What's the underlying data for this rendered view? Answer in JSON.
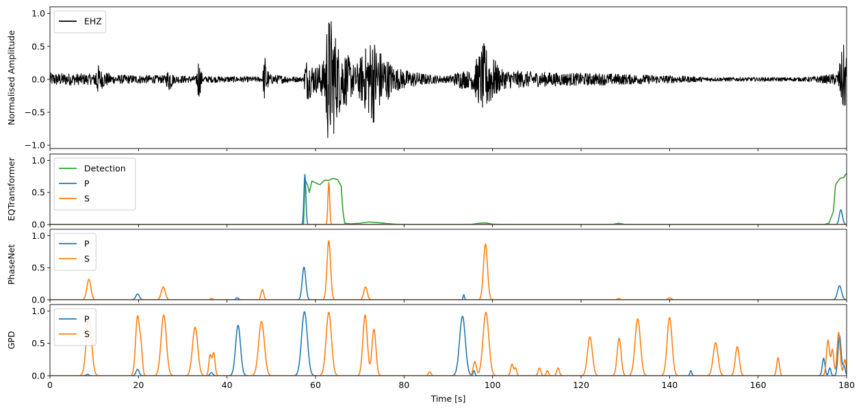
{
  "chart_data": [
    {
      "type": "line",
      "xlim": [
        0,
        180
      ],
      "ylim": [
        -1.05,
        1.1
      ],
      "yticks": [
        -1.0,
        -0.5,
        0.0,
        0.5,
        1.0
      ],
      "ytick_labels": [
        "−1.0",
        "−0.5",
        "0.0",
        "0.5",
        "1.0"
      ],
      "ylabel": "Normalised Amplitude",
      "legend_position": "top-left",
      "series": [
        {
          "name": "EHZ",
          "color": "#000000",
          "envelope": [
            [
              0,
              0.1
            ],
            [
              10,
              0.08
            ],
            [
              10.5,
              0.28
            ],
            [
              11.5,
              0.15
            ],
            [
              14,
              0.07
            ],
            [
              26,
              0.06
            ],
            [
              27,
              0.2
            ],
            [
              28,
              0.06
            ],
            [
              33,
              0.05
            ],
            [
              33.5,
              0.35
            ],
            [
              34.5,
              0.05
            ],
            [
              48,
              0.04
            ],
            [
              48.5,
              0.4
            ],
            [
              49.5,
              0.08
            ],
            [
              57.4,
              0.03
            ],
            [
              57.6,
              0.35
            ],
            [
              60,
              0.2
            ],
            [
              62,
              0.3
            ],
            [
              62.5,
              0.95
            ],
            [
              63.2,
              1.0
            ],
            [
              64,
              0.9
            ],
            [
              65,
              0.55
            ],
            [
              67,
              0.4
            ],
            [
              69,
              0.2
            ],
            [
              71,
              0.45
            ],
            [
              73,
              0.7
            ],
            [
              74,
              0.5
            ],
            [
              78,
              0.18
            ],
            [
              82,
              0.12
            ],
            [
              86,
              0.07
            ],
            [
              90,
              0.05
            ],
            [
              93,
              0.15
            ],
            [
              95,
              0.12
            ],
            [
              98,
              0.55
            ],
            [
              99,
              0.45
            ],
            [
              102,
              0.15
            ],
            [
              108,
              0.12
            ],
            [
              115,
              0.1
            ],
            [
              125,
              0.09
            ],
            [
              140,
              0.06
            ],
            [
              150,
              0.03
            ],
            [
              170,
              0.03
            ],
            [
              175,
              0.06
            ],
            [
              178,
              0.1
            ],
            [
              179.2,
              0.55
            ],
            [
              180,
              0.4
            ]
          ]
        }
      ]
    },
    {
      "type": "line",
      "xlim": [
        0,
        180
      ],
      "ylim": [
        0,
        1.1
      ],
      "yticks": [
        0.0,
        0.5,
        1.0
      ],
      "ytick_labels": [
        "0.0",
        "0.5",
        "1.0"
      ],
      "ylabel": "EQTransformer",
      "legend_position": "top-left",
      "series": [
        {
          "name": "Detection",
          "color": "#2ca02c",
          "points": [
            [
              0,
              0
            ],
            [
              57.3,
              0
            ],
            [
              57.6,
              0.7
            ],
            [
              58.2,
              0.62
            ],
            [
              58.6,
              0.5
            ],
            [
              59.2,
              0.68
            ],
            [
              60,
              0.65
            ],
            [
              61,
              0.62
            ],
            [
              62,
              0.69
            ],
            [
              63,
              0.69
            ],
            [
              64,
              0.72
            ],
            [
              65,
              0.7
            ],
            [
              65.8,
              0.6
            ],
            [
              66.2,
              0.2
            ],
            [
              66.6,
              0.02
            ],
            [
              68,
              0.01
            ],
            [
              70,
              0.02
            ],
            [
              72,
              0.04
            ],
            [
              74,
              0.03
            ],
            [
              76,
              0.015
            ],
            [
              78,
              0.005
            ],
            [
              80,
              0
            ],
            [
              95,
              0
            ],
            [
              97,
              0.02
            ],
            [
              98.5,
              0.025
            ],
            [
              100,
              0.005
            ],
            [
              103,
              0
            ],
            [
              127,
              0
            ],
            [
              128.5,
              0.02
            ],
            [
              130,
              0
            ],
            [
              175,
              0
            ],
            [
              176,
              0.02
            ],
            [
              177,
              0.2
            ],
            [
              177.5,
              0.62
            ],
            [
              178.5,
              0.72
            ],
            [
              179.3,
              0.73
            ],
            [
              180,
              0.8
            ]
          ]
        },
        {
          "name": "P",
          "color": "#1f77b4",
          "peaks": [
            [
              57.6,
              0.78,
              0.22
            ],
            [
              178.7,
              0.23,
              0.35
            ]
          ]
        },
        {
          "name": "S",
          "color": "#ff7f0e",
          "peaks": [
            [
              63.0,
              0.66,
              0.2
            ]
          ]
        }
      ]
    },
    {
      "type": "line",
      "xlim": [
        0,
        180
      ],
      "ylim": [
        0,
        1.1
      ],
      "yticks": [
        0.0,
        0.5,
        1.0
      ],
      "ytick_labels": [
        "0.0",
        "0.5",
        "1.0"
      ],
      "ylabel": "PhaseNet",
      "legend_position": "top-left",
      "series": [
        {
          "name": "P",
          "color": "#1f77b4",
          "peaks": [
            [
              19.8,
              0.09,
              0.4
            ],
            [
              42.3,
              0.03,
              0.3
            ],
            [
              57.4,
              0.51,
              0.4
            ],
            [
              93.5,
              0.08,
              0.15
            ],
            [
              178.4,
              0.22,
              0.45
            ]
          ]
        },
        {
          "name": "S",
          "color": "#ff7f0e",
          "peaks": [
            [
              8.8,
              0.32,
              0.45
            ],
            [
              25.6,
              0.2,
              0.45
            ],
            [
              36.5,
              0.02,
              0.3
            ],
            [
              48.0,
              0.16,
              0.3
            ],
            [
              63.0,
              0.92,
              0.4
            ],
            [
              71.3,
              0.2,
              0.4
            ],
            [
              98.4,
              0.87,
              0.45
            ],
            [
              128.5,
              0.02,
              0.3
            ],
            [
              140.0,
              0.03,
              0.4
            ]
          ]
        }
      ]
    },
    {
      "type": "line",
      "xlim": [
        0,
        180
      ],
      "ylim": [
        0,
        1.1
      ],
      "yticks": [
        0.0,
        0.5,
        1.0
      ],
      "ytick_labels": [
        "0.0",
        "0.5",
        "1.0"
      ],
      "xticks": [
        0,
        20,
        40,
        60,
        80,
        100,
        120,
        140,
        160,
        180
      ],
      "xtick_labels": [
        "0",
        "20",
        "40",
        "60",
        "80",
        "100",
        "120",
        "140",
        "160",
        "180"
      ],
      "xlabel": "Time [s]",
      "ylabel": "GPD",
      "legend_position": "top-left",
      "series": [
        {
          "name": "P",
          "color": "#1f77b4",
          "peaks": [
            [
              8.5,
              0.02,
              0.3
            ],
            [
              19.8,
              0.1,
              0.35
            ],
            [
              36.5,
              0.05,
              0.3
            ],
            [
              42.5,
              0.78,
              0.55
            ],
            [
              57.5,
              0.99,
              0.65
            ],
            [
              93.2,
              0.92,
              0.65
            ],
            [
              95.8,
              0.08,
              0.2
            ],
            [
              144.8,
              0.08,
              0.2
            ],
            [
              174.8,
              0.27,
              0.3
            ],
            [
              176.2,
              0.12,
              0.25
            ],
            [
              178.4,
              0.62,
              0.35
            ],
            [
              179.4,
              0.15,
              0.3
            ]
          ]
        },
        {
          "name": "S",
          "color": "#ff7f0e",
          "peaks": [
            [
              8.8,
              0.9,
              0.6
            ],
            [
              19.8,
              0.92,
              0.45
            ],
            [
              20.6,
              0.35,
              0.3
            ],
            [
              25.7,
              0.94,
              0.6
            ],
            [
              32.8,
              0.75,
              0.6
            ],
            [
              36.2,
              0.32,
              0.3
            ],
            [
              37.0,
              0.35,
              0.3
            ],
            [
              47.8,
              0.84,
              0.65
            ],
            [
              63.0,
              0.98,
              0.6
            ],
            [
              71.2,
              0.94,
              0.5
            ],
            [
              73.2,
              0.72,
              0.45
            ],
            [
              85.8,
              0.06,
              0.3
            ],
            [
              96.0,
              0.22,
              0.35
            ],
            [
              98.5,
              0.98,
              0.65
            ],
            [
              104.4,
              0.18,
              0.3
            ],
            [
              105.2,
              0.12,
              0.25
            ],
            [
              110.6,
              0.12,
              0.3
            ],
            [
              112.4,
              0.08,
              0.25
            ],
            [
              114.8,
              0.12,
              0.3
            ],
            [
              122.0,
              0.6,
              0.55
            ],
            [
              128.6,
              0.58,
              0.45
            ],
            [
              132.8,
              0.88,
              0.6
            ],
            [
              140.0,
              0.9,
              0.55
            ],
            [
              150.4,
              0.51,
              0.55
            ],
            [
              155.3,
              0.45,
              0.45
            ],
            [
              164.5,
              0.28,
              0.3
            ],
            [
              175.8,
              0.55,
              0.35
            ],
            [
              176.8,
              0.4,
              0.3
            ],
            [
              178.2,
              0.67,
              0.35
            ],
            [
              179.6,
              0.25,
              0.3
            ]
          ]
        }
      ]
    }
  ]
}
